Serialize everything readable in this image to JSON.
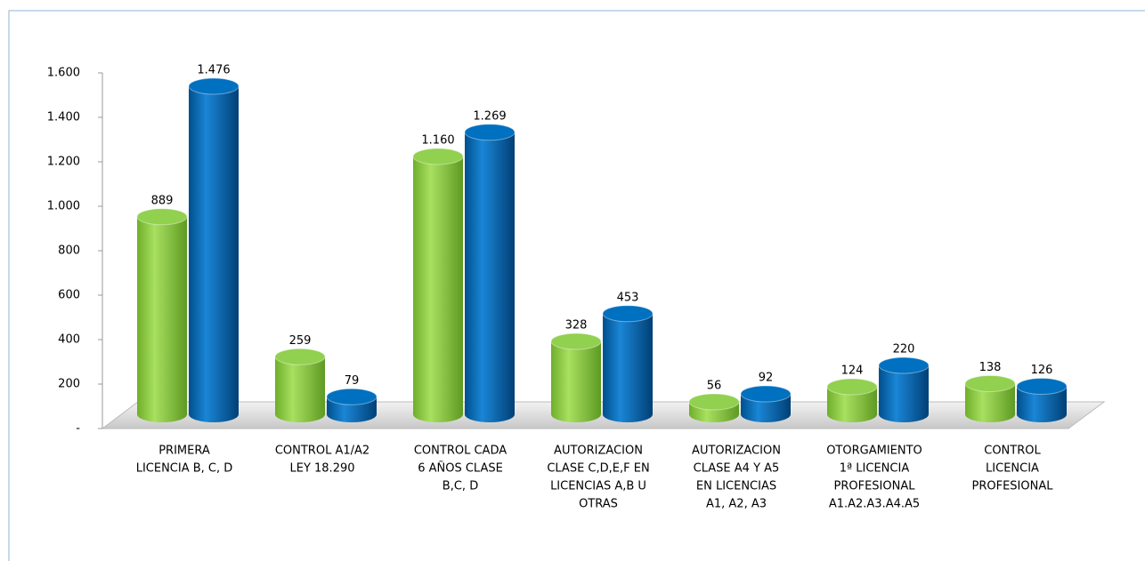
{
  "chart_data": {
    "type": "bar3d",
    "categories": [
      [
        "PRIMERA",
        "LICENCIA B, C, D"
      ],
      [
        "CONTROL A1/A2",
        "LEY 18.290"
      ],
      [
        "CONTROL CADA",
        "6 AÑOS CLASE",
        "B,C, D"
      ],
      [
        "AUTORIZACION",
        "CLASE C,D,E,F EN",
        "LICENCIAS A,B U",
        "OTRAS"
      ],
      [
        "AUTORIZACION",
        "CLASE A4 Y A5",
        "EN LICENCIAS",
        "A1, A2, A3"
      ],
      [
        "OTORGAMIENTO",
        "1ª LICENCIA",
        "PROFESIONAL",
        "A1.A2.A3.A4.A5"
      ],
      [
        "CONTROL",
        "LICENCIA",
        "PROFESIONAL"
      ]
    ],
    "series": [
      {
        "color": "#92d050",
        "values": [
          889,
          259,
          1160,
          328,
          56,
          124,
          138
        ],
        "value_labels": [
          "889",
          "259",
          "1.160",
          "328",
          "56",
          "124",
          "138"
        ]
      },
      {
        "color": "#0070c0",
        "values": [
          1476,
          79,
          1269,
          453,
          92,
          220,
          126
        ],
        "value_labels": [
          "1.476",
          "79",
          "1.269",
          "453",
          "92",
          "220",
          "126"
        ]
      }
    ],
    "ylim": [
      0,
      1600
    ],
    "yticks": [
      {
        "value": 0,
        "label": "-"
      },
      200,
      400,
      600,
      800,
      {
        "value": 1000,
        "label": "1.000"
      },
      {
        "value": 1200,
        "label": "1.200"
      },
      {
        "value": 1400,
        "label": "1.400"
      },
      {
        "value": 1600,
        "label": "1.600"
      }
    ]
  }
}
